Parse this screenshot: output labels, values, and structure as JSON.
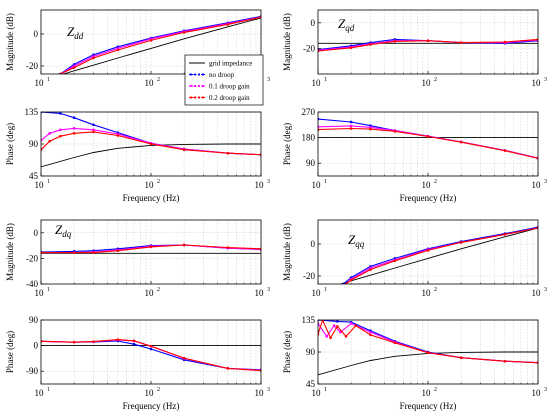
{
  "chart_data": {
    "type": "line",
    "x_scale": "log",
    "x_unit": "Hz",
    "x_ticks": [
      10,
      100,
      1000
    ],
    "x_tick_labels": [
      "10",
      "10",
      "10"
    ],
    "x_tick_exponents": [
      "1",
      "2",
      "3"
    ],
    "xlabel": "Frequency (Hz)",
    "xlim": [
      10,
      1000
    ],
    "grid": true,
    "legend": {
      "placement": "inside top-left panel, bottom-right",
      "entries": [
        "grid impedance",
        "no droop",
        "0.1 droop gain",
        "0.2 droop gain"
      ]
    },
    "series_styles": [
      {
        "name": "grid impedance",
        "color": "#000000",
        "marker": "none"
      },
      {
        "name": "no droop",
        "color": "#0000ff",
        "marker": "dot"
      },
      {
        "name": "0.1 droop gain",
        "color": "#ff00ff",
        "marker": "dot"
      },
      {
        "name": "0.2 droop gain",
        "color": "#ff0000",
        "marker": "dot"
      }
    ],
    "panels": [
      {
        "id": "dd-mag",
        "label_main": "Z",
        "label_sub": "dd",
        "ylabel": "Magnitude (dB)",
        "ylim": [
          -25,
          15
        ],
        "yticks": [
          -20,
          0
        ],
        "ytick_labels": [
          "-20",
          "0"
        ],
        "xlabel": "",
        "series": [
          {
            "name": "grid impedance",
            "x": [
              16,
              20,
              30,
              50,
              100,
              200,
              500,
              1000
            ],
            "y": [
              -25,
              -23,
              -19.5,
              -15,
              -9,
              -3,
              4.5,
              10
            ]
          },
          {
            "name": "no droop",
            "x": [
              15,
              20,
              30,
              50,
              100,
              200,
              500,
              1000
            ],
            "y": [
              -25,
              -19,
              -13,
              -8,
              -2.5,
              2,
              7,
              11
            ]
          },
          {
            "name": "0.1 droop gain",
            "x": [
              15,
              20,
              30,
              50,
              100,
              200,
              500,
              1000
            ],
            "y": [
              -25,
              -20,
              -14,
              -9,
              -3,
              1.5,
              6.5,
              10.5
            ]
          },
          {
            "name": "0.2 droop gain",
            "x": [
              15,
              20,
              30,
              50,
              100,
              200,
              500,
              1000
            ],
            "y": [
              -25,
              -21,
              -15,
              -10,
              -4,
              1,
              6,
              10.5
            ]
          }
        ]
      },
      {
        "id": "dd-phase",
        "label_main": "",
        "label_sub": "",
        "ylabel": "Phase (deg)",
        "ylim": [
          45,
          135
        ],
        "yticks": [
          45,
          90,
          135
        ],
        "ytick_labels": [
          "45",
          "90",
          "135"
        ],
        "xlabel": "Frequency (Hz)",
        "series": [
          {
            "name": "grid impedance",
            "x": [
              10,
              20,
              30,
              50,
              100,
              200,
              500,
              1000
            ],
            "y": [
              58,
              71,
              78,
              84,
              88,
              89.5,
              90,
              90
            ]
          },
          {
            "name": "no droop",
            "x": [
              10,
              15,
              20,
              30,
              50,
              100,
              200,
              500,
              1000
            ],
            "y": [
              135,
              133,
              127,
              117,
              106,
              91,
              83,
              77,
              75
            ]
          },
          {
            "name": "0.1 droop gain",
            "x": [
              10,
              12,
              15,
              20,
              30,
              50,
              100,
              200,
              500,
              1000
            ],
            "y": [
              95,
              105,
              110,
              112,
              110,
              104,
              91,
              83,
              77,
              75
            ]
          },
          {
            "name": "0.2 droop gain",
            "x": [
              10,
              12,
              15,
              20,
              30,
              50,
              100,
              200,
              500,
              1000
            ],
            "y": [
              82,
              94,
              101,
              105,
              107,
              102,
              90,
              82,
              77,
              75
            ]
          }
        ]
      },
      {
        "id": "qd-mag",
        "label_main": "Z",
        "label_sub": "qd",
        "ylabel": "Magnitude (dB)",
        "ylim": [
          -40,
          10
        ],
        "yticks": [
          -20,
          0
        ],
        "ytick_labels": [
          "-20",
          "0"
        ],
        "xlabel": "",
        "series": [
          {
            "name": "grid impedance",
            "x": [
              10,
              1000
            ],
            "y": [
              -16,
              -16
            ]
          },
          {
            "name": "no droop",
            "x": [
              10,
              20,
              30,
              50,
              100,
              200,
              500,
              1000
            ],
            "y": [
              -21,
              -18,
              -15.5,
              -13,
              -14,
              -15.5,
              -16,
              -14
            ]
          },
          {
            "name": "0.1 droop gain",
            "x": [
              10,
              20,
              30,
              50,
              100,
              200,
              500,
              1000
            ],
            "y": [
              -21.5,
              -19,
              -16.5,
              -14,
              -14,
              -15.5,
              -15.5,
              -13.5
            ]
          },
          {
            "name": "0.2 droop gain",
            "x": [
              10,
              20,
              30,
              50,
              100,
              200,
              500,
              1000
            ],
            "y": [
              -22,
              -19.5,
              -17,
              -14.5,
              -14,
              -15.5,
              -15,
              -13
            ]
          }
        ]
      },
      {
        "id": "qd-phase",
        "label_main": "",
        "label_sub": "",
        "ylabel": "Phase (deg)",
        "ylim": [
          45,
          270
        ],
        "yticks": [
          90,
          180,
          270
        ],
        "ytick_labels": [
          "90",
          "180",
          "270"
        ],
        "xlabel": "Frequency (Hz)",
        "series": [
          {
            "name": "grid impedance",
            "x": [
              10,
              1000
            ],
            "y": [
              180,
              180
            ]
          },
          {
            "name": "no droop",
            "x": [
              10,
              20,
              30,
              50,
              100,
              200,
              500,
              1000
            ],
            "y": [
              245,
              235,
              222,
              205,
              185,
              165,
              135,
              108
            ]
          },
          {
            "name": "0.1 droop gain",
            "x": [
              10,
              20,
              30,
              50,
              100,
              200,
              500,
              1000
            ],
            "y": [
              218,
              221,
              216,
              205,
              185,
              165,
              135,
              108
            ]
          },
          {
            "name": "0.2 droop gain",
            "x": [
              10,
              20,
              30,
              50,
              100,
              200,
              500,
              1000
            ],
            "y": [
              208,
              212,
              210,
              202,
              184,
              164,
              134,
              107
            ]
          }
        ]
      },
      {
        "id": "dq-mag",
        "label_main": "Z",
        "label_sub": "dq",
        "ylabel": "Magnitude (dB)",
        "ylim": [
          -40,
          10
        ],
        "yticks": [
          -40,
          -20,
          0
        ],
        "ytick_labels": [
          "-40",
          "-20",
          "0"
        ],
        "xlabel": "",
        "series": [
          {
            "name": "grid impedance",
            "x": [
              10,
              1000
            ],
            "y": [
              -16,
              -16
            ]
          },
          {
            "name": "no droop",
            "x": [
              10,
              20,
              30,
              50,
              100,
              200,
              500,
              1000
            ],
            "y": [
              -15,
              -14.5,
              -14,
              -12.5,
              -10,
              -9.5,
              -12,
              -13
            ]
          },
          {
            "name": "0.1 droop gain",
            "x": [
              10,
              20,
              30,
              50,
              100,
              200,
              500,
              1000
            ],
            "y": [
              -15.5,
              -15.5,
              -15,
              -13.5,
              -10.5,
              -9.5,
              -12,
              -13
            ]
          },
          {
            "name": "0.2 droop gain",
            "x": [
              10,
              20,
              30,
              50,
              100,
              200,
              500,
              1000
            ],
            "y": [
              -15.5,
              -15.5,
              -15.5,
              -14,
              -11,
              -9.5,
              -11.5,
              -12.5
            ]
          }
        ]
      },
      {
        "id": "dq-phase",
        "label_main": "",
        "label_sub": "",
        "ylabel": "Phase (deg)",
        "ylim": [
          -135,
          90
        ],
        "yticks": [
          -90,
          0,
          90
        ],
        "ytick_labels": [
          "-90",
          "0",
          "90"
        ],
        "xlabel": "Frequency (Hz)",
        "series": [
          {
            "name": "grid impedance",
            "x": [
              10,
              1000
            ],
            "y": [
              0,
              0
            ]
          },
          {
            "name": "no droop",
            "x": [
              10,
              20,
              30,
              50,
              70,
              100,
              200,
              500,
              1000
            ],
            "y": [
              15,
              12,
              13,
              16,
              5,
              -12,
              -50,
              -80,
              -85
            ]
          },
          {
            "name": "0.1 droop gain",
            "x": [
              10,
              20,
              30,
              50,
              70,
              100,
              200,
              500,
              1000
            ],
            "y": [
              15,
              12,
              14,
              20,
              16,
              -2,
              -45,
              -80,
              -87
            ]
          },
          {
            "name": "0.2 droop gain",
            "x": [
              10,
              20,
              30,
              50,
              70,
              100,
              200,
              500,
              1000
            ],
            "y": [
              15,
              12,
              14,
              21,
              17,
              -2,
              -44,
              -80,
              -88
            ]
          }
        ]
      },
      {
        "id": "qq-mag",
        "label_main": "Z",
        "label_sub": "qq",
        "ylabel": "Magnitude (dB)",
        "ylim": [
          -25,
          15
        ],
        "yticks": [
          -20,
          0
        ],
        "ytick_labels": [
          "-20",
          "0"
        ],
        "xlabel": "",
        "series": [
          {
            "name": "grid impedance",
            "x": [
              16,
              20,
              30,
              50,
              100,
              200,
              500,
              1000
            ],
            "y": [
              -25,
              -23,
              -19.5,
              -15,
              -9,
              -3,
              4.5,
              10
            ]
          },
          {
            "name": "no droop",
            "x": [
              17,
              20,
              30,
              50,
              100,
              200,
              500,
              1000
            ],
            "y": [
              -25,
              -21,
              -14,
              -9,
              -3,
              1.5,
              6.5,
              10.5
            ]
          },
          {
            "name": "0.1 droop gain",
            "x": [
              18,
              20,
              30,
              50,
              100,
              200,
              500,
              1000
            ],
            "y": [
              -25,
              -22,
              -15,
              -10,
              -3.5,
              1,
              6,
              10
            ]
          },
          {
            "name": "0.2 droop gain",
            "x": [
              18,
              20,
              30,
              50,
              100,
              200,
              500,
              1000
            ],
            "y": [
              -25,
              -22.5,
              -16,
              -10.5,
              -4,
              1,
              6,
              10
            ]
          }
        ]
      },
      {
        "id": "qq-phase",
        "label_main": "",
        "label_sub": "",
        "ylabel": "Phase (deg)",
        "ylim": [
          45,
          135
        ],
        "yticks": [
          45,
          90,
          135
        ],
        "ytick_labels": [
          "45",
          "90",
          "135"
        ],
        "xlabel": "Frequency (Hz)",
        "series": [
          {
            "name": "grid impedance",
            "x": [
              10,
              20,
              30,
              50,
              100,
              200,
              500,
              1000
            ],
            "y": [
              58,
              71,
              78,
              84,
              88,
              89.5,
              90,
              90
            ]
          },
          {
            "name": "no droop",
            "x": [
              10,
              15,
              20,
              30,
              50,
              100,
              200,
              500,
              1000
            ],
            "y": [
              135,
              133,
              132,
              120,
              105,
              90,
              82,
              77,
              75
            ]
          },
          {
            "name": "0.1 droop gain",
            "x": [
              10,
              12,
              14,
              16,
              20,
              30,
              50,
              100,
              200,
              500,
              1000
            ],
            "y": [
              130,
              112,
              127,
              118,
              130,
              118,
              104,
              89,
              82,
              77,
              75
            ]
          },
          {
            "name": "0.2 droop gain",
            "x": [
              10,
              11,
              13,
              15,
              18,
              22,
              30,
              50,
              100,
              200,
              500,
              1000
            ],
            "y": [
              115,
              135,
              110,
              126,
              112,
              127,
              114,
              103,
              89,
              82,
              77,
              75
            ]
          }
        ]
      }
    ]
  }
}
